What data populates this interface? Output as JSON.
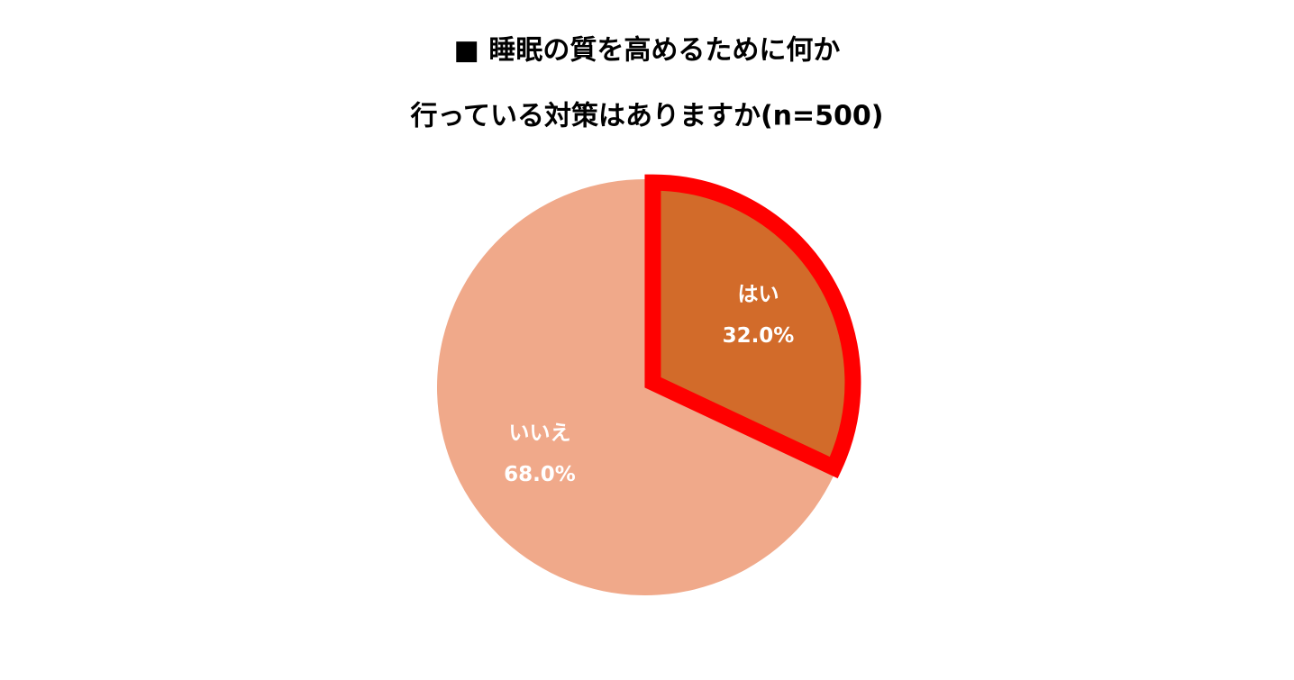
{
  "chart_data": {
    "type": "pie",
    "title": [
      "■ 睡眠の質を高めるために何か",
      "行っている対策はありますか(n=500)"
    ],
    "categories": [
      "はい",
      "いいえ"
    ],
    "values": [
      32.0,
      68.0
    ],
    "value_labels": [
      "32.0%",
      "68.0%"
    ],
    "colors": [
      "#d26b2a",
      "#f0a98a"
    ],
    "edge_colors": [
      "#ff0000",
      null
    ],
    "start_angle": 0,
    "direction": "clockwise"
  }
}
